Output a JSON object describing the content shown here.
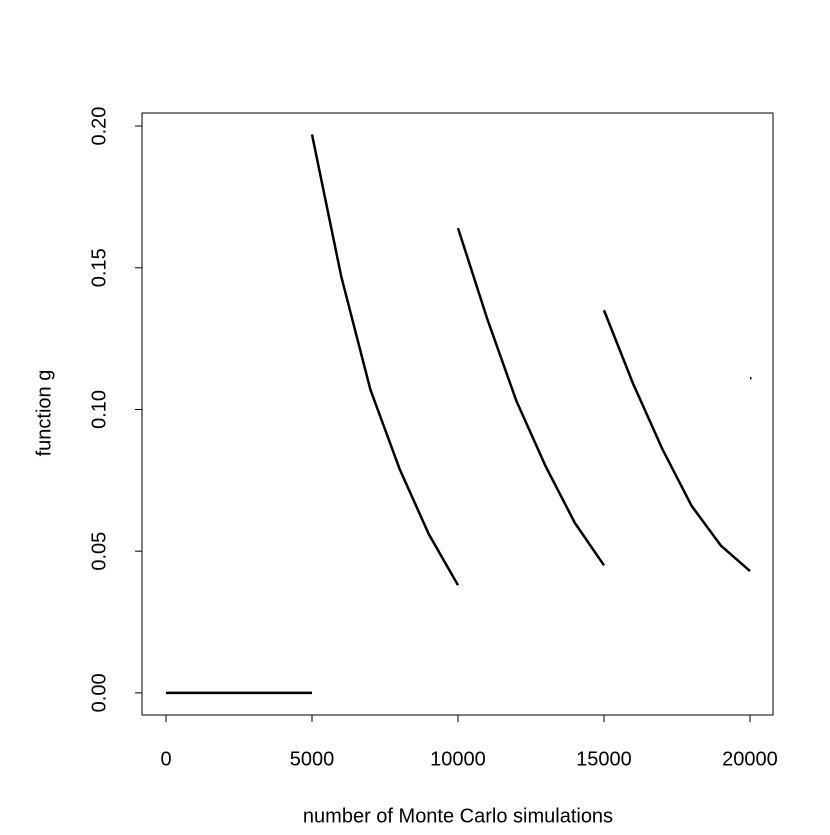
{
  "chart_data": {
    "type": "line",
    "xlabel": "number of Monte Carlo simulations",
    "ylabel": "function g",
    "x": [
      0,
      5000,
      null,
      5000,
      6000,
      7000,
      8000,
      9000,
      10000,
      null,
      10000,
      11000,
      12000,
      13000,
      14000,
      15000,
      null,
      15000,
      16000,
      17000,
      18000,
      19000,
      20000,
      null,
      20000
    ],
    "values": [
      0,
      0,
      null,
      0.197,
      0.147,
      0.107,
      0.079,
      0.056,
      0.038,
      null,
      0.164,
      0.132,
      0.103,
      0.08,
      0.06,
      0.045,
      null,
      0.135,
      0.109,
      0.086,
      0.066,
      0.052,
      0.043,
      null,
      0.111
    ],
    "color": "#000000",
    "xlim": [
      -822,
      20788
    ],
    "ylim": [
      -0.0078,
      0.2046
    ],
    "xticks": [
      0,
      5000,
      10000,
      15000,
      20000
    ],
    "yticks": [
      {
        "value": 0,
        "label": "0.00"
      },
      {
        "value": 0.05,
        "label": "0.05"
      },
      {
        "value": 0.1,
        "label": "0.10"
      },
      {
        "value": 0.15,
        "label": "0.15"
      },
      {
        "value": 0.2,
        "label": "0.20"
      }
    ]
  }
}
